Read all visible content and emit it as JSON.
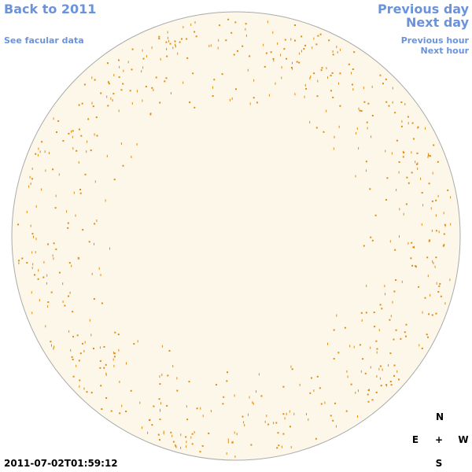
{
  "nav": {
    "back": "Back to 2011",
    "facular": "See facular data",
    "previous_day": "Previous day",
    "next_day": "Next day",
    "previous_hour": "Previous hour",
    "next_hour": "Next hour"
  },
  "timestamp": "2011-07-02T01:59:12",
  "compass": {
    "north": "N",
    "east": "E",
    "center": "+",
    "west": "W",
    "south": "S"
  }
}
